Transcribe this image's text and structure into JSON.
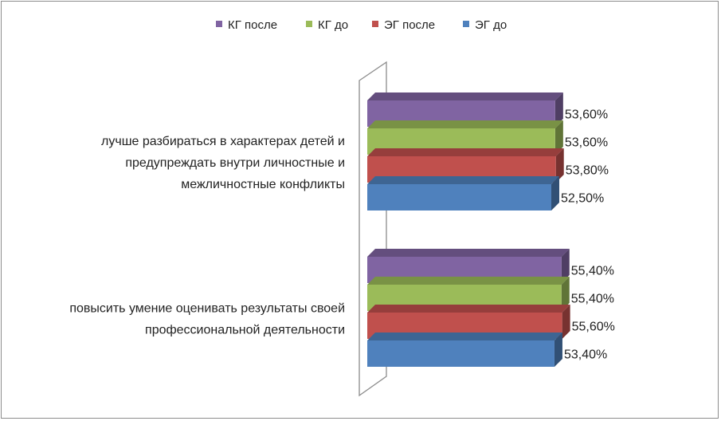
{
  "chart_data": {
    "type": "bar",
    "orientation": "horizontal",
    "style": "3d-clustered",
    "title": "",
    "xlabel": "",
    "ylabel": "",
    "value_format": "percent-comma",
    "xlim": [
      0,
      100
    ],
    "legend_position": "top",
    "grid": false,
    "categories": [
      [
        "лучше разбираться в характерах детей и",
        "предупреждать внутри личностные и",
        "межличностные конфликты"
      ],
      [
        "повысить умение оценивать результаты своей",
        "профессиональной деятельности"
      ]
    ],
    "series": [
      {
        "name": "КГ после",
        "color": "#8064a2",
        "values": [
          53.6,
          55.4
        ],
        "labels": [
          "53,60%",
          "55,40%"
        ]
      },
      {
        "name": "КГ до",
        "color": "#9bbb59",
        "values": [
          53.6,
          55.4
        ],
        "labels": [
          "53,60%",
          "55,40%"
        ]
      },
      {
        "name": "ЭГ после",
        "color": "#c0504d",
        "values": [
          53.8,
          55.6
        ],
        "labels": [
          "53,80%",
          "55,60%"
        ]
      },
      {
        "name": "ЭГ до",
        "color": "#4f81bd",
        "values": [
          52.5,
          53.4
        ],
        "labels": [
          "52,50%",
          "53,40%"
        ]
      }
    ]
  }
}
